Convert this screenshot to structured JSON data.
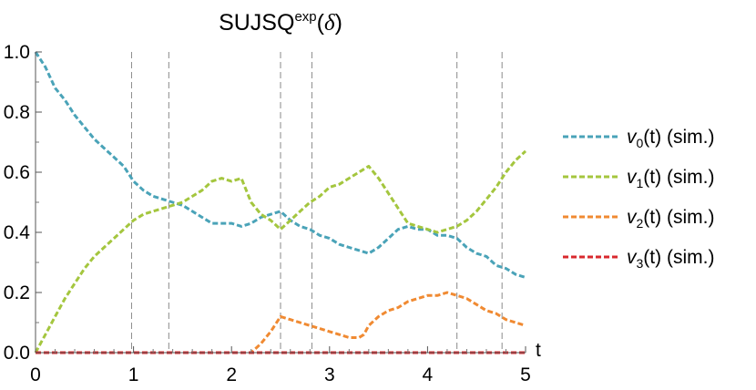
{
  "chart_data": {
    "type": "line",
    "title": {
      "base": "SUJSQ",
      "sup": "exp",
      "arg_open": "(",
      "arg": "δ",
      "arg_close": ")"
    },
    "xlabel": "t",
    "ylabel": "",
    "xlim": [
      0,
      5
    ],
    "ylim": [
      0,
      1.0
    ],
    "x_ticks": [
      "0",
      "1",
      "2",
      "3",
      "4",
      "5"
    ],
    "y_ticks": [
      "0.0",
      "0.2",
      "0.4",
      "0.6",
      "0.8",
      "1.0"
    ],
    "vertical_markers": [
      0.98,
      1.36,
      2.5,
      2.82,
      4.3,
      4.76
    ],
    "legend_position": "right",
    "series": [
      {
        "name": "v0(t) (sim.)",
        "name_parts": {
          "var": "v",
          "sub": "0",
          "rest": "(t) (sim.)"
        },
        "color": "#4aa3b8",
        "x": [
          0,
          0.1,
          0.2,
          0.3,
          0.4,
          0.5,
          0.6,
          0.7,
          0.8,
          0.9,
          1.0,
          1.1,
          1.2,
          1.3,
          1.4,
          1.5,
          1.6,
          1.7,
          1.8,
          1.9,
          2.0,
          2.1,
          2.2,
          2.3,
          2.4,
          2.5,
          2.6,
          2.7,
          2.8,
          2.9,
          3.0,
          3.1,
          3.2,
          3.3,
          3.4,
          3.5,
          3.6,
          3.7,
          3.8,
          3.9,
          4.0,
          4.1,
          4.2,
          4.3,
          4.4,
          4.5,
          4.6,
          4.7,
          4.8,
          4.9,
          5.0
        ],
        "y": [
          1.0,
          0.95,
          0.88,
          0.84,
          0.79,
          0.75,
          0.71,
          0.68,
          0.65,
          0.62,
          0.57,
          0.54,
          0.52,
          0.51,
          0.5,
          0.49,
          0.47,
          0.45,
          0.43,
          0.43,
          0.43,
          0.42,
          0.43,
          0.45,
          0.46,
          0.47,
          0.44,
          0.42,
          0.41,
          0.39,
          0.38,
          0.36,
          0.35,
          0.34,
          0.33,
          0.35,
          0.38,
          0.41,
          0.42,
          0.41,
          0.41,
          0.39,
          0.39,
          0.38,
          0.35,
          0.33,
          0.32,
          0.29,
          0.28,
          0.26,
          0.25
        ]
      },
      {
        "name": "v1(t) (sim.)",
        "name_parts": {
          "var": "v",
          "sub": "1",
          "rest": "(t) (sim.)"
        },
        "color": "#a4c63e",
        "x": [
          0,
          0.1,
          0.2,
          0.3,
          0.4,
          0.5,
          0.6,
          0.7,
          0.8,
          0.9,
          1.0,
          1.1,
          1.2,
          1.3,
          1.4,
          1.5,
          1.6,
          1.7,
          1.8,
          1.9,
          2.0,
          2.1,
          2.2,
          2.3,
          2.4,
          2.5,
          2.6,
          2.7,
          2.8,
          2.9,
          3.0,
          3.1,
          3.2,
          3.3,
          3.4,
          3.5,
          3.6,
          3.7,
          3.8,
          3.9,
          4.0,
          4.1,
          4.2,
          4.3,
          4.4,
          4.5,
          4.6,
          4.7,
          4.8,
          4.9,
          5.0
        ],
        "y": [
          0.0,
          0.06,
          0.12,
          0.18,
          0.23,
          0.28,
          0.32,
          0.35,
          0.38,
          0.41,
          0.44,
          0.46,
          0.47,
          0.48,
          0.49,
          0.5,
          0.52,
          0.54,
          0.57,
          0.58,
          0.57,
          0.58,
          0.5,
          0.46,
          0.44,
          0.41,
          0.44,
          0.47,
          0.5,
          0.52,
          0.55,
          0.56,
          0.58,
          0.6,
          0.62,
          0.58,
          0.53,
          0.48,
          0.43,
          0.42,
          0.41,
          0.4,
          0.41,
          0.42,
          0.44,
          0.47,
          0.51,
          0.55,
          0.6,
          0.64,
          0.67
        ]
      },
      {
        "name": "v2(t) (sim.)",
        "name_parts": {
          "var": "v",
          "sub": "2",
          "rest": "(t) (sim.)"
        },
        "color": "#f08a32",
        "x": [
          0,
          0.5,
          1.0,
          1.5,
          2.0,
          2.2,
          2.3,
          2.4,
          2.5,
          2.6,
          2.7,
          2.8,
          2.9,
          3.0,
          3.1,
          3.2,
          3.3,
          3.35,
          3.4,
          3.5,
          3.6,
          3.7,
          3.8,
          3.9,
          4.0,
          4.1,
          4.2,
          4.3,
          4.4,
          4.5,
          4.6,
          4.7,
          4.8,
          4.9,
          5.0
        ],
        "y": [
          0.0,
          0.0,
          0.0,
          0.0,
          0.0,
          0.0,
          0.03,
          0.07,
          0.12,
          0.11,
          0.1,
          0.09,
          0.08,
          0.07,
          0.06,
          0.05,
          0.05,
          0.06,
          0.09,
          0.12,
          0.14,
          0.15,
          0.17,
          0.18,
          0.19,
          0.19,
          0.2,
          0.19,
          0.18,
          0.16,
          0.14,
          0.13,
          0.11,
          0.1,
          0.09
        ]
      },
      {
        "name": "v3(t) (sim.)",
        "name_parts": {
          "var": "v",
          "sub": "3",
          "rest": "(t) (sim.)"
        },
        "color": "#d9292e",
        "x": [
          0,
          5
        ],
        "y": [
          0.0,
          0.0
        ]
      }
    ]
  }
}
